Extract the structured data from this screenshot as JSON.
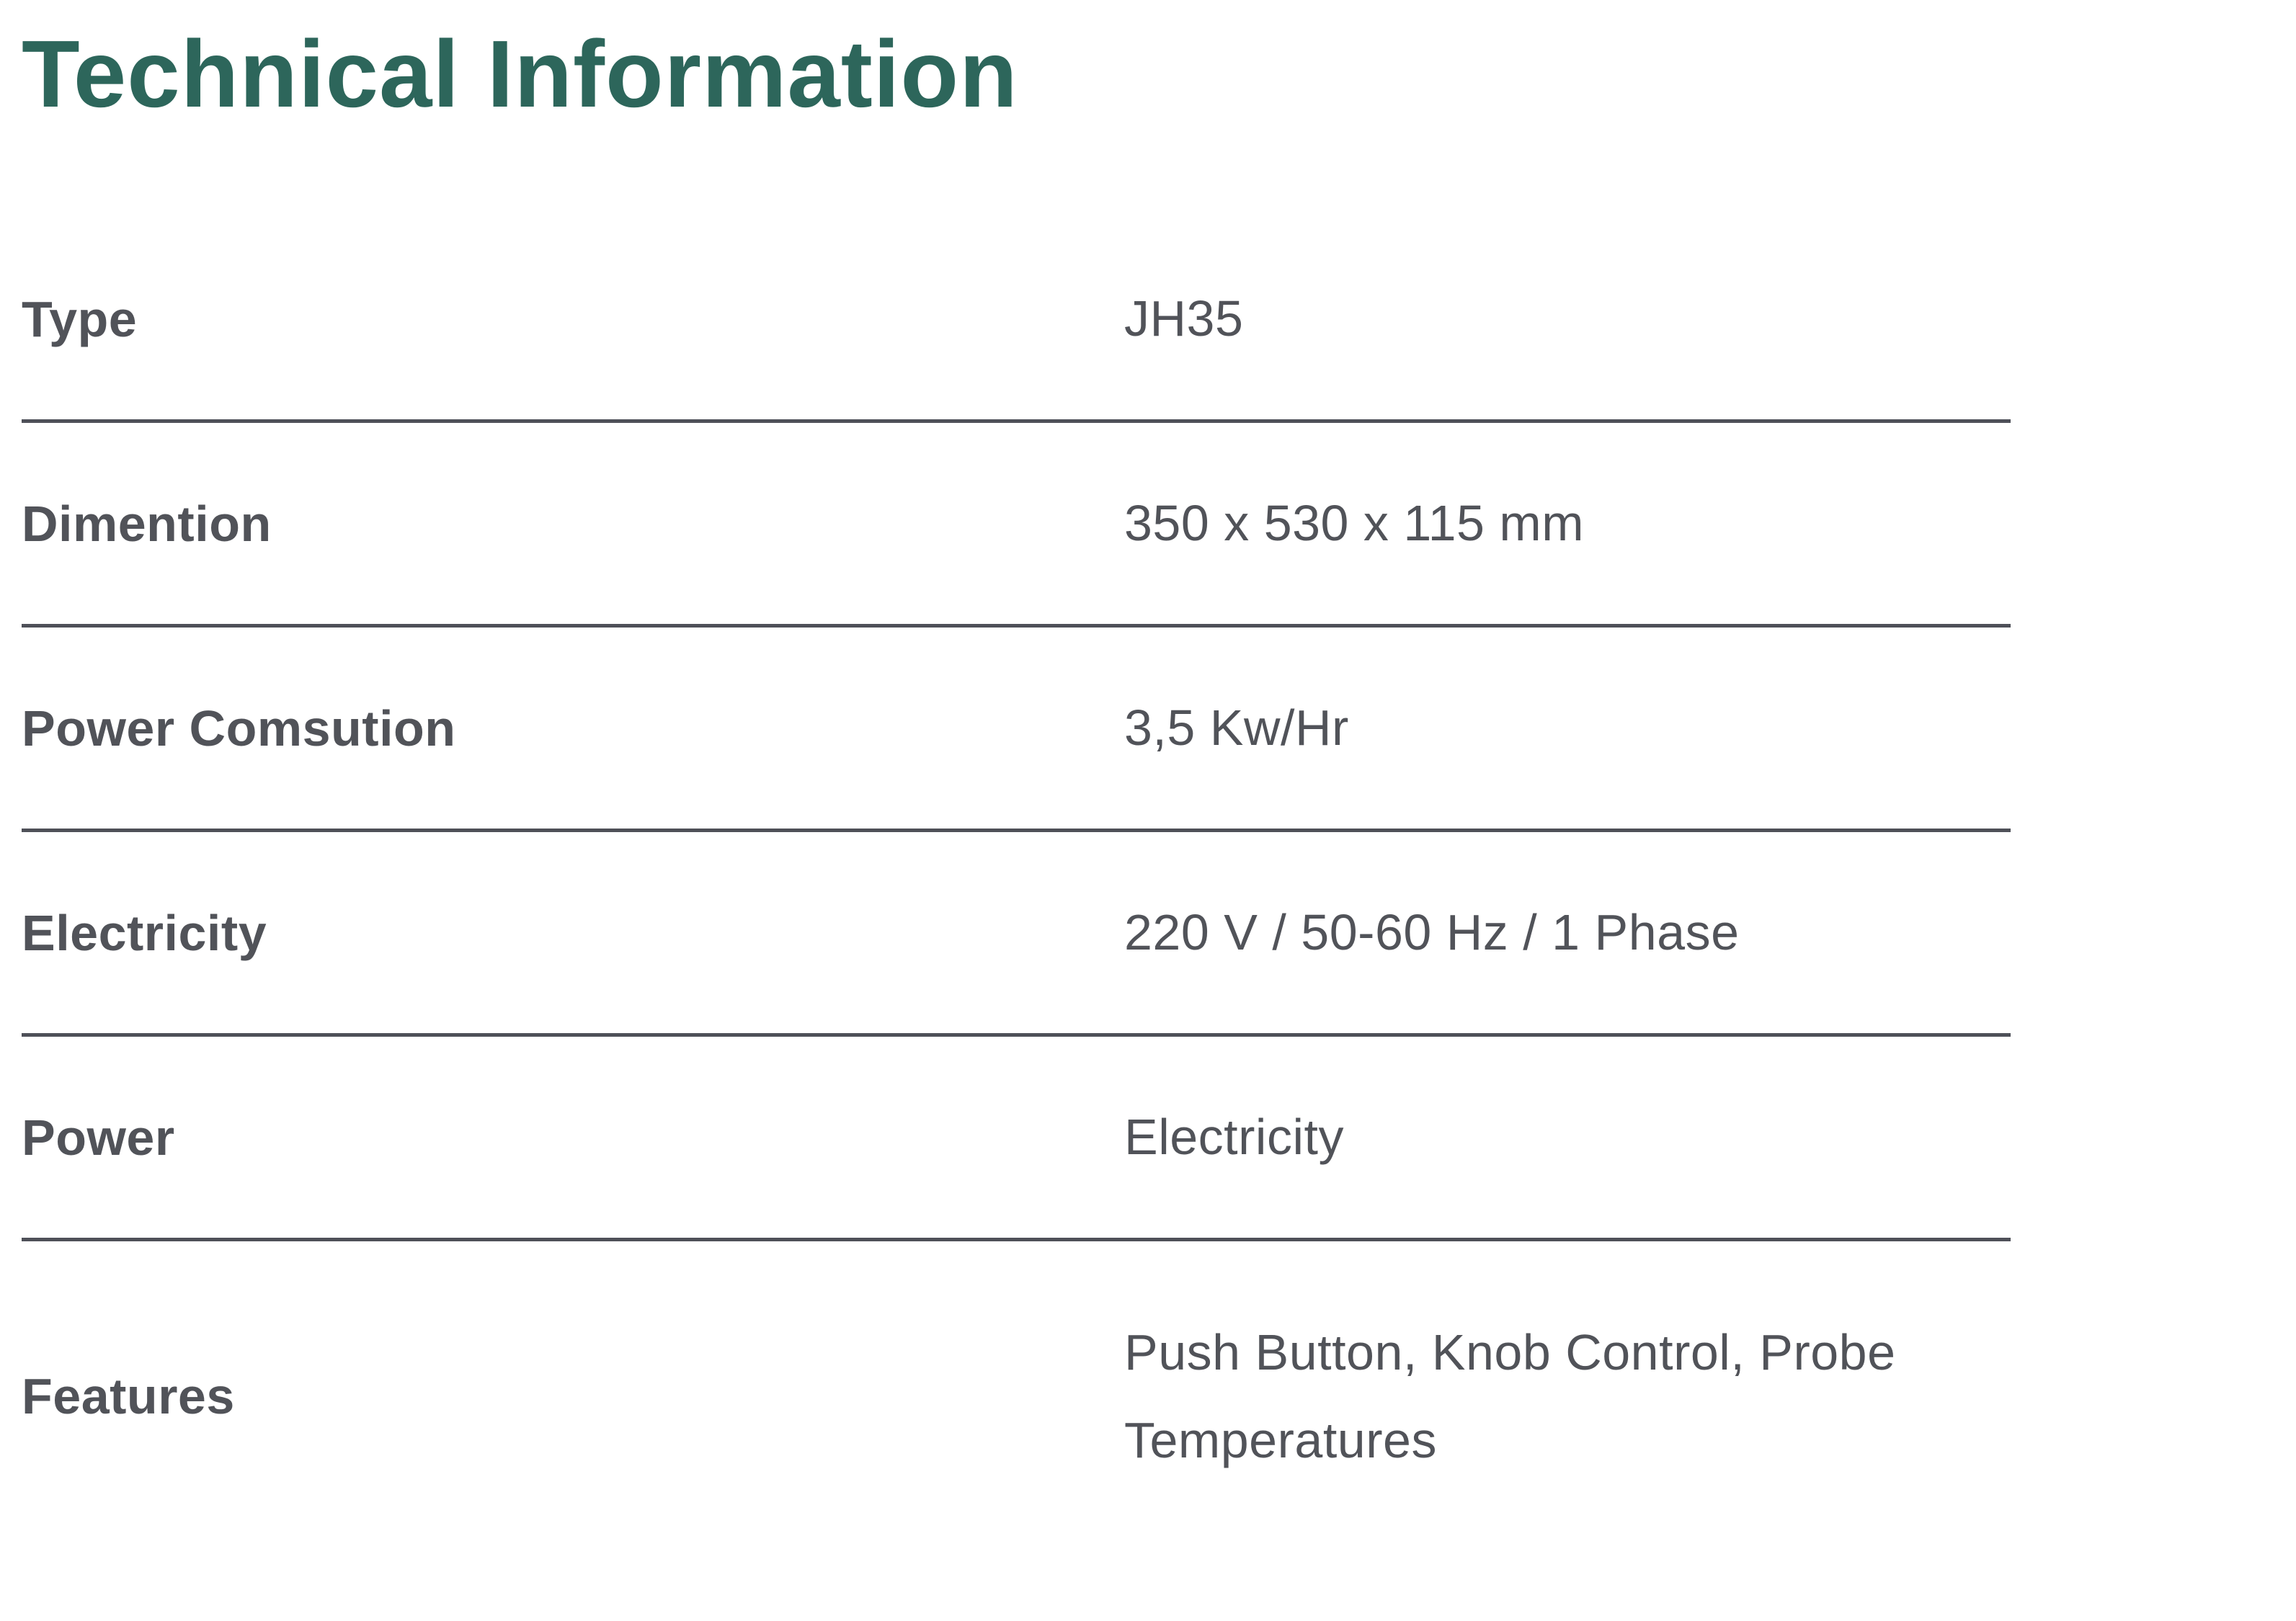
{
  "page": {
    "title": "Technical Information"
  },
  "colors": {
    "title": "#2d665b",
    "text": "#515359",
    "divider": "#4e5058",
    "background": "#ffffff"
  },
  "table": {
    "rows": [
      {
        "label": "Type",
        "value": "JH35"
      },
      {
        "label": "Dimention",
        "value": "350 x 530 x 115 mm"
      },
      {
        "label": "Power Comsution",
        "value": "3,5 Kw/Hr"
      },
      {
        "label": "Electricity",
        "value": "220 V / 50-60 Hz / 1 Phase"
      },
      {
        "label": "Power",
        "value": "Electricity"
      },
      {
        "label": "Features",
        "value": "Push Button, Knob Control, Probe Temperatures"
      }
    ]
  }
}
